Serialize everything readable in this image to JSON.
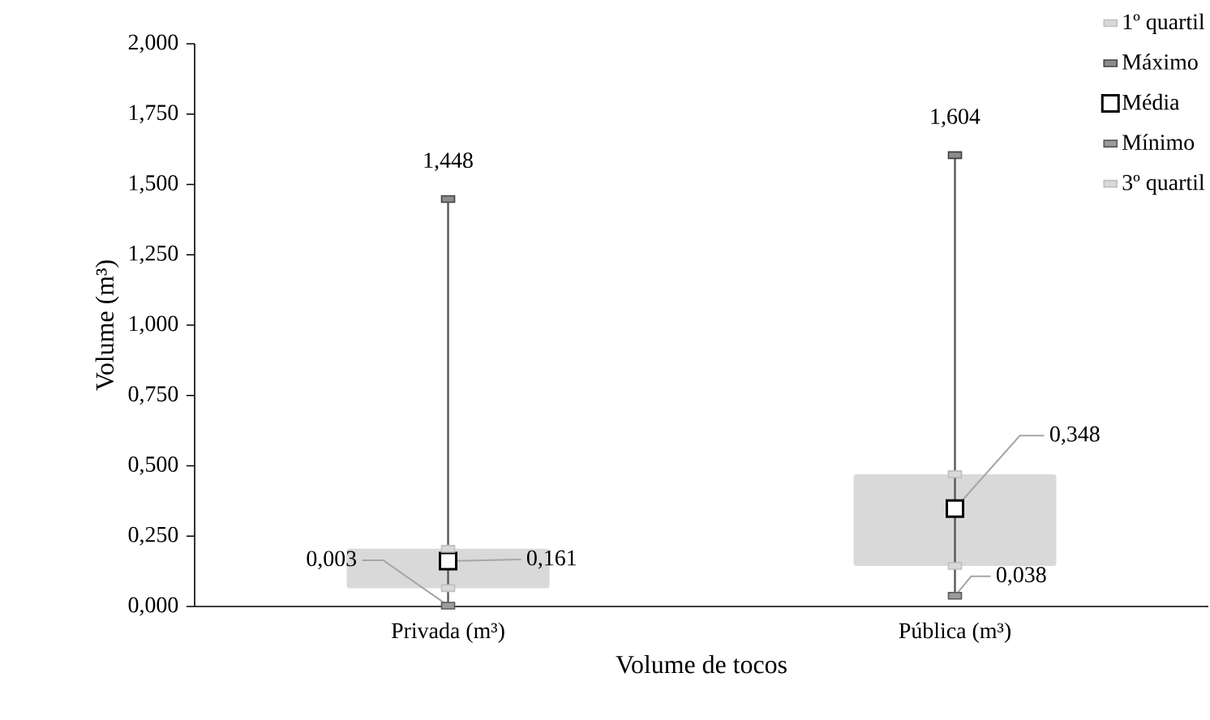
{
  "chart_data": {
    "type": "scatter",
    "xlabel": "Volume de tocos",
    "ylabel": "Volume (m³)",
    "categories": [
      "Privada (m³)",
      "Pública (m³)"
    ],
    "ylim": [
      0,
      2
    ],
    "yticks": [
      {
        "value": 0,
        "label": "0,000"
      },
      {
        "value": 0.25,
        "label": "0,250"
      },
      {
        "value": 0.5,
        "label": "0,500"
      },
      {
        "value": 0.75,
        "label": "0,750"
      },
      {
        "value": 1,
        "label": "1,000"
      },
      {
        "value": 1.25,
        "label": "1,250"
      },
      {
        "value": 1.5,
        "label": "1,500"
      },
      {
        "value": 1.75,
        "label": "1,750"
      },
      {
        "value": 2,
        "label": "2,000"
      }
    ],
    "legend": "top right",
    "series": [
      {
        "name": "1º quartil",
        "color": "#bfbfbf",
        "marker": "square",
        "values": [
          0.065,
          0.144
        ]
      },
      {
        "name": "Máximo",
        "color": "#404040",
        "marker": "square",
        "values": [
          1.448,
          1.604
        ],
        "value_labels": [
          "1,448",
          "1,604"
        ]
      },
      {
        "name": "Média",
        "color": "#000000",
        "marker": "square",
        "values": [
          0.161,
          0.348
        ],
        "value_labels": [
          "0,161",
          "0,348"
        ]
      },
      {
        "name": "Mínimo",
        "color": "#595959",
        "marker": "square",
        "values": [
          0.003,
          0.038
        ],
        "value_labels": [
          "0,003",
          "0,038"
        ]
      },
      {
        "name": "3º quartil",
        "color": "#bfbfbf",
        "marker": "square",
        "values": [
          0.205,
          0.47
        ]
      },
      {
        "type": "bar",
        "color": "#d9d9d9",
        "base": [
          0.065,
          0.144
        ],
        "values": [
          0.14,
          0.326
        ]
      }
    ]
  }
}
